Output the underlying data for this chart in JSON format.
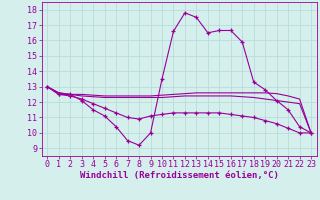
{
  "x": [
    0,
    1,
    2,
    3,
    4,
    5,
    6,
    7,
    8,
    9,
    10,
    11,
    12,
    13,
    14,
    15,
    16,
    17,
    18,
    19,
    20,
    21,
    22,
    23
  ],
  "line1": [
    13.0,
    12.5,
    12.5,
    12.1,
    11.5,
    11.1,
    10.4,
    9.5,
    9.2,
    10.0,
    13.5,
    16.6,
    17.8,
    17.5,
    16.5,
    16.65,
    16.65,
    15.9,
    13.3,
    12.8,
    12.1,
    11.5,
    10.4,
    10.0
  ],
  "line2": [
    13.0,
    12.6,
    12.5,
    12.5,
    12.45,
    12.4,
    12.4,
    12.4,
    12.4,
    12.4,
    12.45,
    12.5,
    12.55,
    12.6,
    12.6,
    12.6,
    12.6,
    12.6,
    12.6,
    12.6,
    12.55,
    12.4,
    12.2,
    10.0
  ],
  "line3": [
    13.0,
    12.6,
    12.5,
    12.4,
    12.35,
    12.3,
    12.3,
    12.3,
    12.3,
    12.3,
    12.3,
    12.35,
    12.4,
    12.4,
    12.4,
    12.4,
    12.4,
    12.35,
    12.3,
    12.2,
    12.1,
    12.0,
    11.9,
    10.0
  ],
  "line4": [
    13.0,
    12.5,
    12.4,
    12.2,
    11.9,
    11.6,
    11.3,
    11.0,
    10.9,
    11.1,
    11.2,
    11.3,
    11.3,
    11.3,
    11.3,
    11.3,
    11.2,
    11.1,
    11.0,
    10.8,
    10.6,
    10.3,
    10.0,
    10.0
  ],
  "bg_color": "#d4efec",
  "line_color": "#990099",
  "grid_color": "#b8dcd8",
  "xlabel": "Windchill (Refroidissement éolien,°C)",
  "ylim": [
    8.5,
    18.5
  ],
  "xlim": [
    -0.5,
    23.5
  ],
  "yticks": [
    9,
    10,
    11,
    12,
    13,
    14,
    15,
    16,
    17,
    18
  ],
  "xticks": [
    0,
    1,
    2,
    3,
    4,
    5,
    6,
    7,
    8,
    9,
    10,
    11,
    12,
    13,
    14,
    15,
    16,
    17,
    18,
    19,
    20,
    21,
    22,
    23
  ],
  "xlabel_fontsize": 6.5,
  "tick_fontsize": 6.0
}
